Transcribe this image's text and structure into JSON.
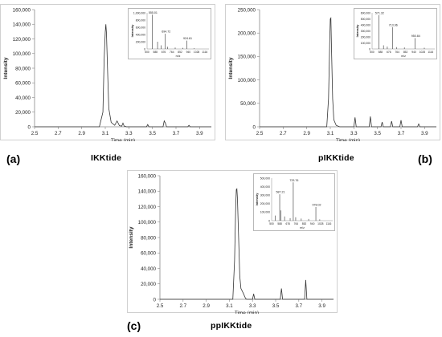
{
  "panels": [
    {
      "letter": "(a)",
      "name": "IKKtide",
      "chart_data": {
        "type": "line",
        "title": "",
        "xlabel": "Time (min)",
        "ylabel": "Intensity",
        "xlim": [
          2.5,
          4.0
        ],
        "ylim": [
          0,
          160000
        ],
        "xticks": [
          "2.5",
          "2.7",
          "2.9",
          "3.1",
          "3.3",
          "3.5",
          "3.7",
          "3.9"
        ],
        "yticks": [
          "0",
          "20,000",
          "40,000",
          "60,000",
          "80,000",
          "100,000",
          "120,000",
          "140,000",
          "160,000"
        ],
        "series": [
          {
            "x": [
              2.5,
              2.9,
              3.05,
              3.08,
              3.09,
              3.1,
              3.105,
              3.11,
              3.12,
              3.13,
              3.15,
              3.18,
              3.2,
              3.22,
              3.24,
              3.25,
              3.26,
              3.27,
              3.28,
              3.3,
              3.45,
              3.46,
              3.47,
              3.59,
              3.6,
              3.61,
              3.62,
              3.8,
              3.81,
              3.82,
              4.0
            ],
            "y": [
              0,
              0,
              0,
              20000,
              90000,
              130000,
              140000,
              128000,
              75000,
              25000,
              6000,
              2000,
              8000,
              1500,
              1000,
              5000,
              1000,
              500,
              0,
              0,
              0,
              3000,
              0,
              0,
              8000,
              5000,
              0,
              0,
              2000,
              0,
              0
            ]
          }
        ],
        "inset": {
          "xlabel": "m/z",
          "ylim": [
            0,
            1000000
          ],
          "yticks": [
            "0",
            "200,000",
            "400,000",
            "600,000",
            "800,000",
            "1,000,000"
          ],
          "xticks": [
            "500",
            "588",
            "676",
            "764",
            "852",
            "940",
            "1028",
            "1116"
          ],
          "xlim": [
            500,
            1160
          ],
          "peak_labels": [
            "555.01",
            "694.72",
            "924.61"
          ],
          "peaks": [
            {
              "mz": 555.01,
              "value": 950000
            },
            {
              "mz": 694.72,
              "value": 420000
            },
            {
              "mz": 924.61,
              "value": 230000
            },
            {
              "mz": 612,
              "value": 200000
            },
            {
              "mz": 650,
              "value": 100000
            },
            {
              "mz": 720,
              "value": 60000
            },
            {
              "mz": 800,
              "value": 40000
            },
            {
              "mz": 880,
              "value": 30000
            },
            {
              "mz": 1000,
              "value": 20000
            }
          ]
        }
      }
    },
    {
      "letter": "(b)",
      "name": "pIKKtide",
      "chart_data": {
        "type": "line",
        "title": "",
        "xlabel": "Time (min)",
        "ylabel": "Intensity",
        "xlim": [
          2.5,
          4.0
        ],
        "ylim": [
          0,
          250000
        ],
        "xticks": [
          "2.5",
          "2.7",
          "2.9",
          "3.1",
          "3.3",
          "3.5",
          "3.7",
          "3.9"
        ],
        "yticks": [
          "0",
          "50,000",
          "100,000",
          "150,000",
          "200,000",
          "250,000"
        ],
        "series": [
          {
            "x": [
              2.5,
              3.0,
              3.07,
              3.085,
              3.095,
              3.1,
              3.105,
              3.11,
              3.12,
              3.13,
              3.15,
              3.18,
              3.3,
              3.31,
              3.32,
              3.43,
              3.44,
              3.45,
              3.53,
              3.54,
              3.55,
              3.61,
              3.62,
              3.63,
              3.69,
              3.7,
              3.71,
              3.84,
              3.85,
              3.86,
              4.0
            ],
            "y": [
              0,
              0,
              0,
              60000,
              180000,
              230000,
              232000,
              170000,
              60000,
              15000,
              3000,
              0,
              0,
              20000,
              0,
              0,
              22000,
              0,
              0,
              10000,
              0,
              0,
              12000,
              0,
              0,
              14000,
              0,
              0,
              6000,
              0,
              0
            ]
          }
        ],
        "inset": {
          "xlabel": "m/z",
          "ylim": [
            0,
            600000
          ],
          "yticks": [
            "0",
            "100,000",
            "200,000",
            "300,000",
            "400,000",
            "500,000",
            "600,000"
          ],
          "xticks": [
            "500",
            "588",
            "676",
            "764",
            "852",
            "940",
            "1028",
            "1116"
          ],
          "xlim": [
            500,
            1160
          ],
          "peak_labels": [
            "571.32",
            "713.96",
            "950.84"
          ],
          "peaks": [
            {
              "mz": 571.32,
              "value": 560000
            },
            {
              "mz": 713.96,
              "value": 360000
            },
            {
              "mz": 950.84,
              "value": 180000
            },
            {
              "mz": 620,
              "value": 60000
            },
            {
              "mz": 660,
              "value": 40000
            },
            {
              "mz": 760,
              "value": 30000
            },
            {
              "mz": 840,
              "value": 25000
            },
            {
              "mz": 1050,
              "value": 20000
            }
          ]
        }
      }
    },
    {
      "letter": "(c)",
      "name": "ppIKKtide",
      "chart_data": {
        "type": "line",
        "title": "",
        "xlabel": "Time (min)",
        "ylabel": "Intensity",
        "xlim": [
          2.5,
          4.0
        ],
        "ylim": [
          0,
          160000
        ],
        "xticks": [
          "2.5",
          "2.7",
          "2.9",
          "3.1",
          "3.3",
          "3.5",
          "3.7",
          "3.9"
        ],
        "yticks": [
          "0",
          "20,000",
          "40,000",
          "60,000",
          "80,000",
          "100,000",
          "120,000",
          "140,000",
          "160,000"
        ],
        "series": [
          {
            "x": [
              2.5,
              3.1,
              3.13,
              3.145,
              3.155,
              3.16,
              3.165,
              3.17,
              3.18,
              3.19,
              3.2,
              3.22,
              3.24,
              3.25,
              3.3,
              3.31,
              3.32,
              3.54,
              3.55,
              3.56,
              3.75,
              3.76,
              3.77,
              4.0
            ],
            "y": [
              0,
              0,
              0,
              50000,
              120000,
              142000,
              143000,
              130000,
              80000,
              30000,
              14000,
              8000,
              1000,
              0,
              0,
              7000,
              0,
              0,
              14000,
              0,
              0,
              25000,
              0,
              0
            ]
          }
        ],
        "inset": {
          "xlabel": "m/z",
          "ylim": [
            0,
            500000
          ],
          "yticks": [
            "0",
            "100,000",
            "200,000",
            "300,000",
            "400,000",
            "500,000"
          ],
          "xticks": [
            "500",
            "588",
            "676",
            "764",
            "852",
            "940",
            "1028",
            "1116"
          ],
          "xlim": [
            500,
            1160
          ],
          "peak_labels": [
            "587.21",
            "733.76",
            "978.02"
          ],
          "peaks": [
            {
              "mz": 587.21,
              "value": 310000
            },
            {
              "mz": 733.76,
              "value": 450000
            },
            {
              "mz": 978.02,
              "value": 160000
            },
            {
              "mz": 540,
              "value": 60000
            },
            {
              "mz": 600,
              "value": 120000
            },
            {
              "mz": 640,
              "value": 50000
            },
            {
              "mz": 700,
              "value": 30000
            },
            {
              "mz": 760,
              "value": 40000
            },
            {
              "mz": 820,
              "value": 25000
            },
            {
              "mz": 900,
              "value": 20000
            },
            {
              "mz": 1020,
              "value": 15000
            }
          ]
        }
      }
    }
  ]
}
